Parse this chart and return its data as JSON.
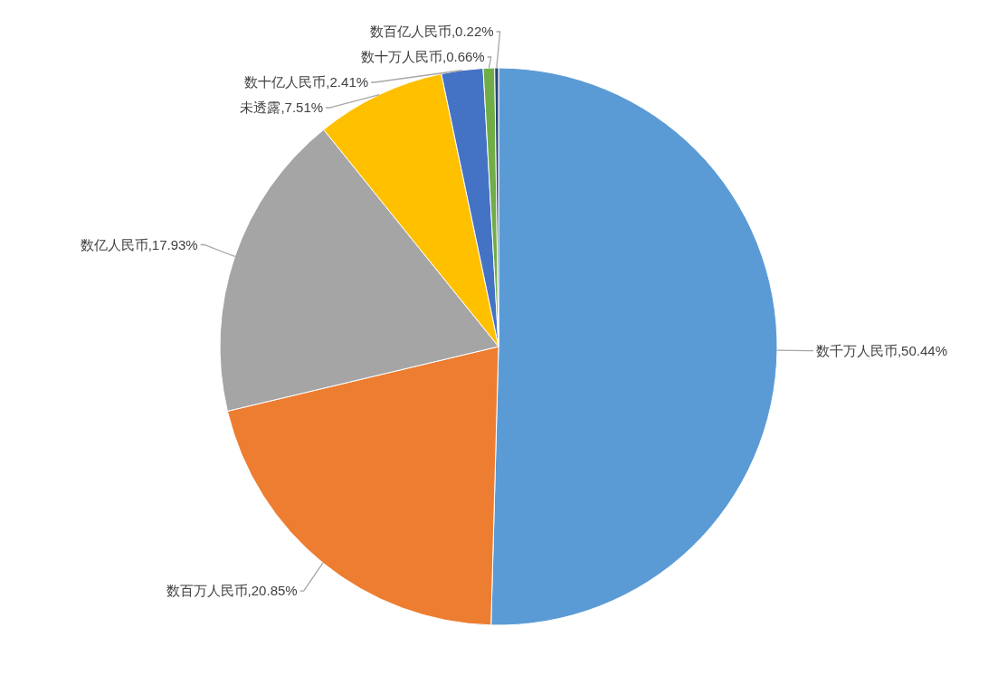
{
  "chart_data": {
    "type": "pie",
    "categories": [
      "数千万人民币",
      "数百万人民币",
      "数亿人民币",
      "未透露",
      "数十亿人民币",
      "数十万人民币",
      "数百亿人民币"
    ],
    "values": [
      50.44,
      20.85,
      17.93,
      7.51,
      2.41,
      0.66,
      0.22
    ],
    "colors": [
      "#5b9bd5",
      "#ed7d31",
      "#a5a5a5",
      "#ffc000",
      "#4472c4",
      "#70ad47",
      "#264478"
    ],
    "value_labels": [
      "50.44%",
      "20.85%",
      "17.93%",
      "7.51%",
      "2.41%",
      "0.66%",
      "0.22%"
    ],
    "legend": false
  }
}
